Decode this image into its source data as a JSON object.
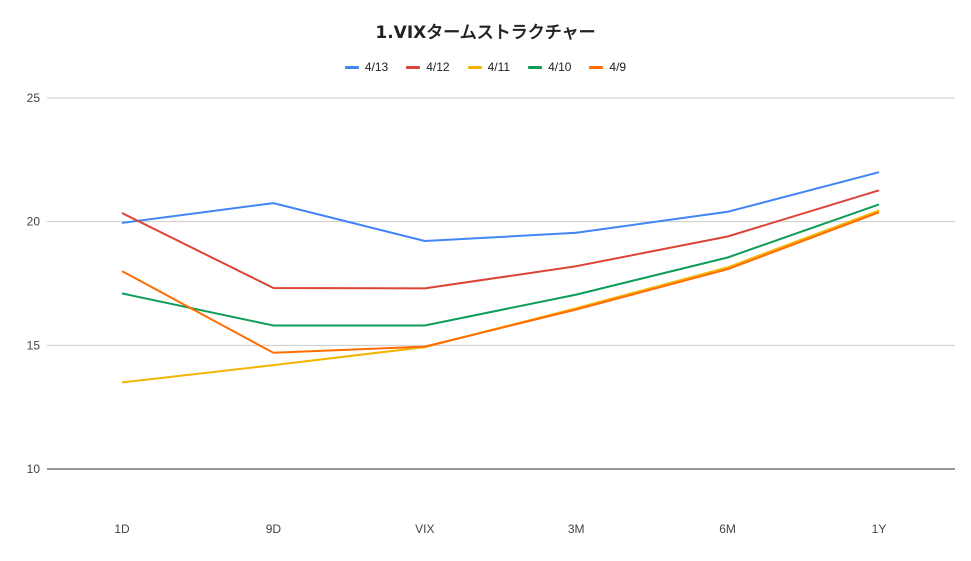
{
  "chart_data": {
    "type": "line",
    "title": "1.VIXタームストラクチャー",
    "categories": [
      "1D",
      "9D",
      "VIX",
      "3M",
      "6M",
      "1Y"
    ],
    "ylim": [
      10,
      25
    ],
    "yticks": [
      10,
      15,
      20,
      25
    ],
    "grid": true,
    "legend_position": "top",
    "series": [
      {
        "name": "4/13",
        "color": "#4285F4",
        "values": [
          19.95,
          20.75,
          19.22,
          19.55,
          20.4,
          22.0
        ]
      },
      {
        "name": "4/12",
        "color": "#DB4437",
        "values": [
          20.35,
          17.32,
          17.3,
          18.2,
          19.4,
          21.27
        ]
      },
      {
        "name": "4/11",
        "color": "#F4B400",
        "values": [
          13.5,
          14.2,
          14.93,
          16.5,
          18.15,
          20.45
        ]
      },
      {
        "name": "4/10",
        "color": "#0F9D58",
        "values": [
          17.1,
          15.8,
          15.8,
          17.05,
          18.55,
          20.7
        ]
      },
      {
        "name": "4/9",
        "color": "#FF6D01",
        "values": [
          18.0,
          14.7,
          14.95,
          16.45,
          18.08,
          20.38
        ]
      }
    ]
  }
}
